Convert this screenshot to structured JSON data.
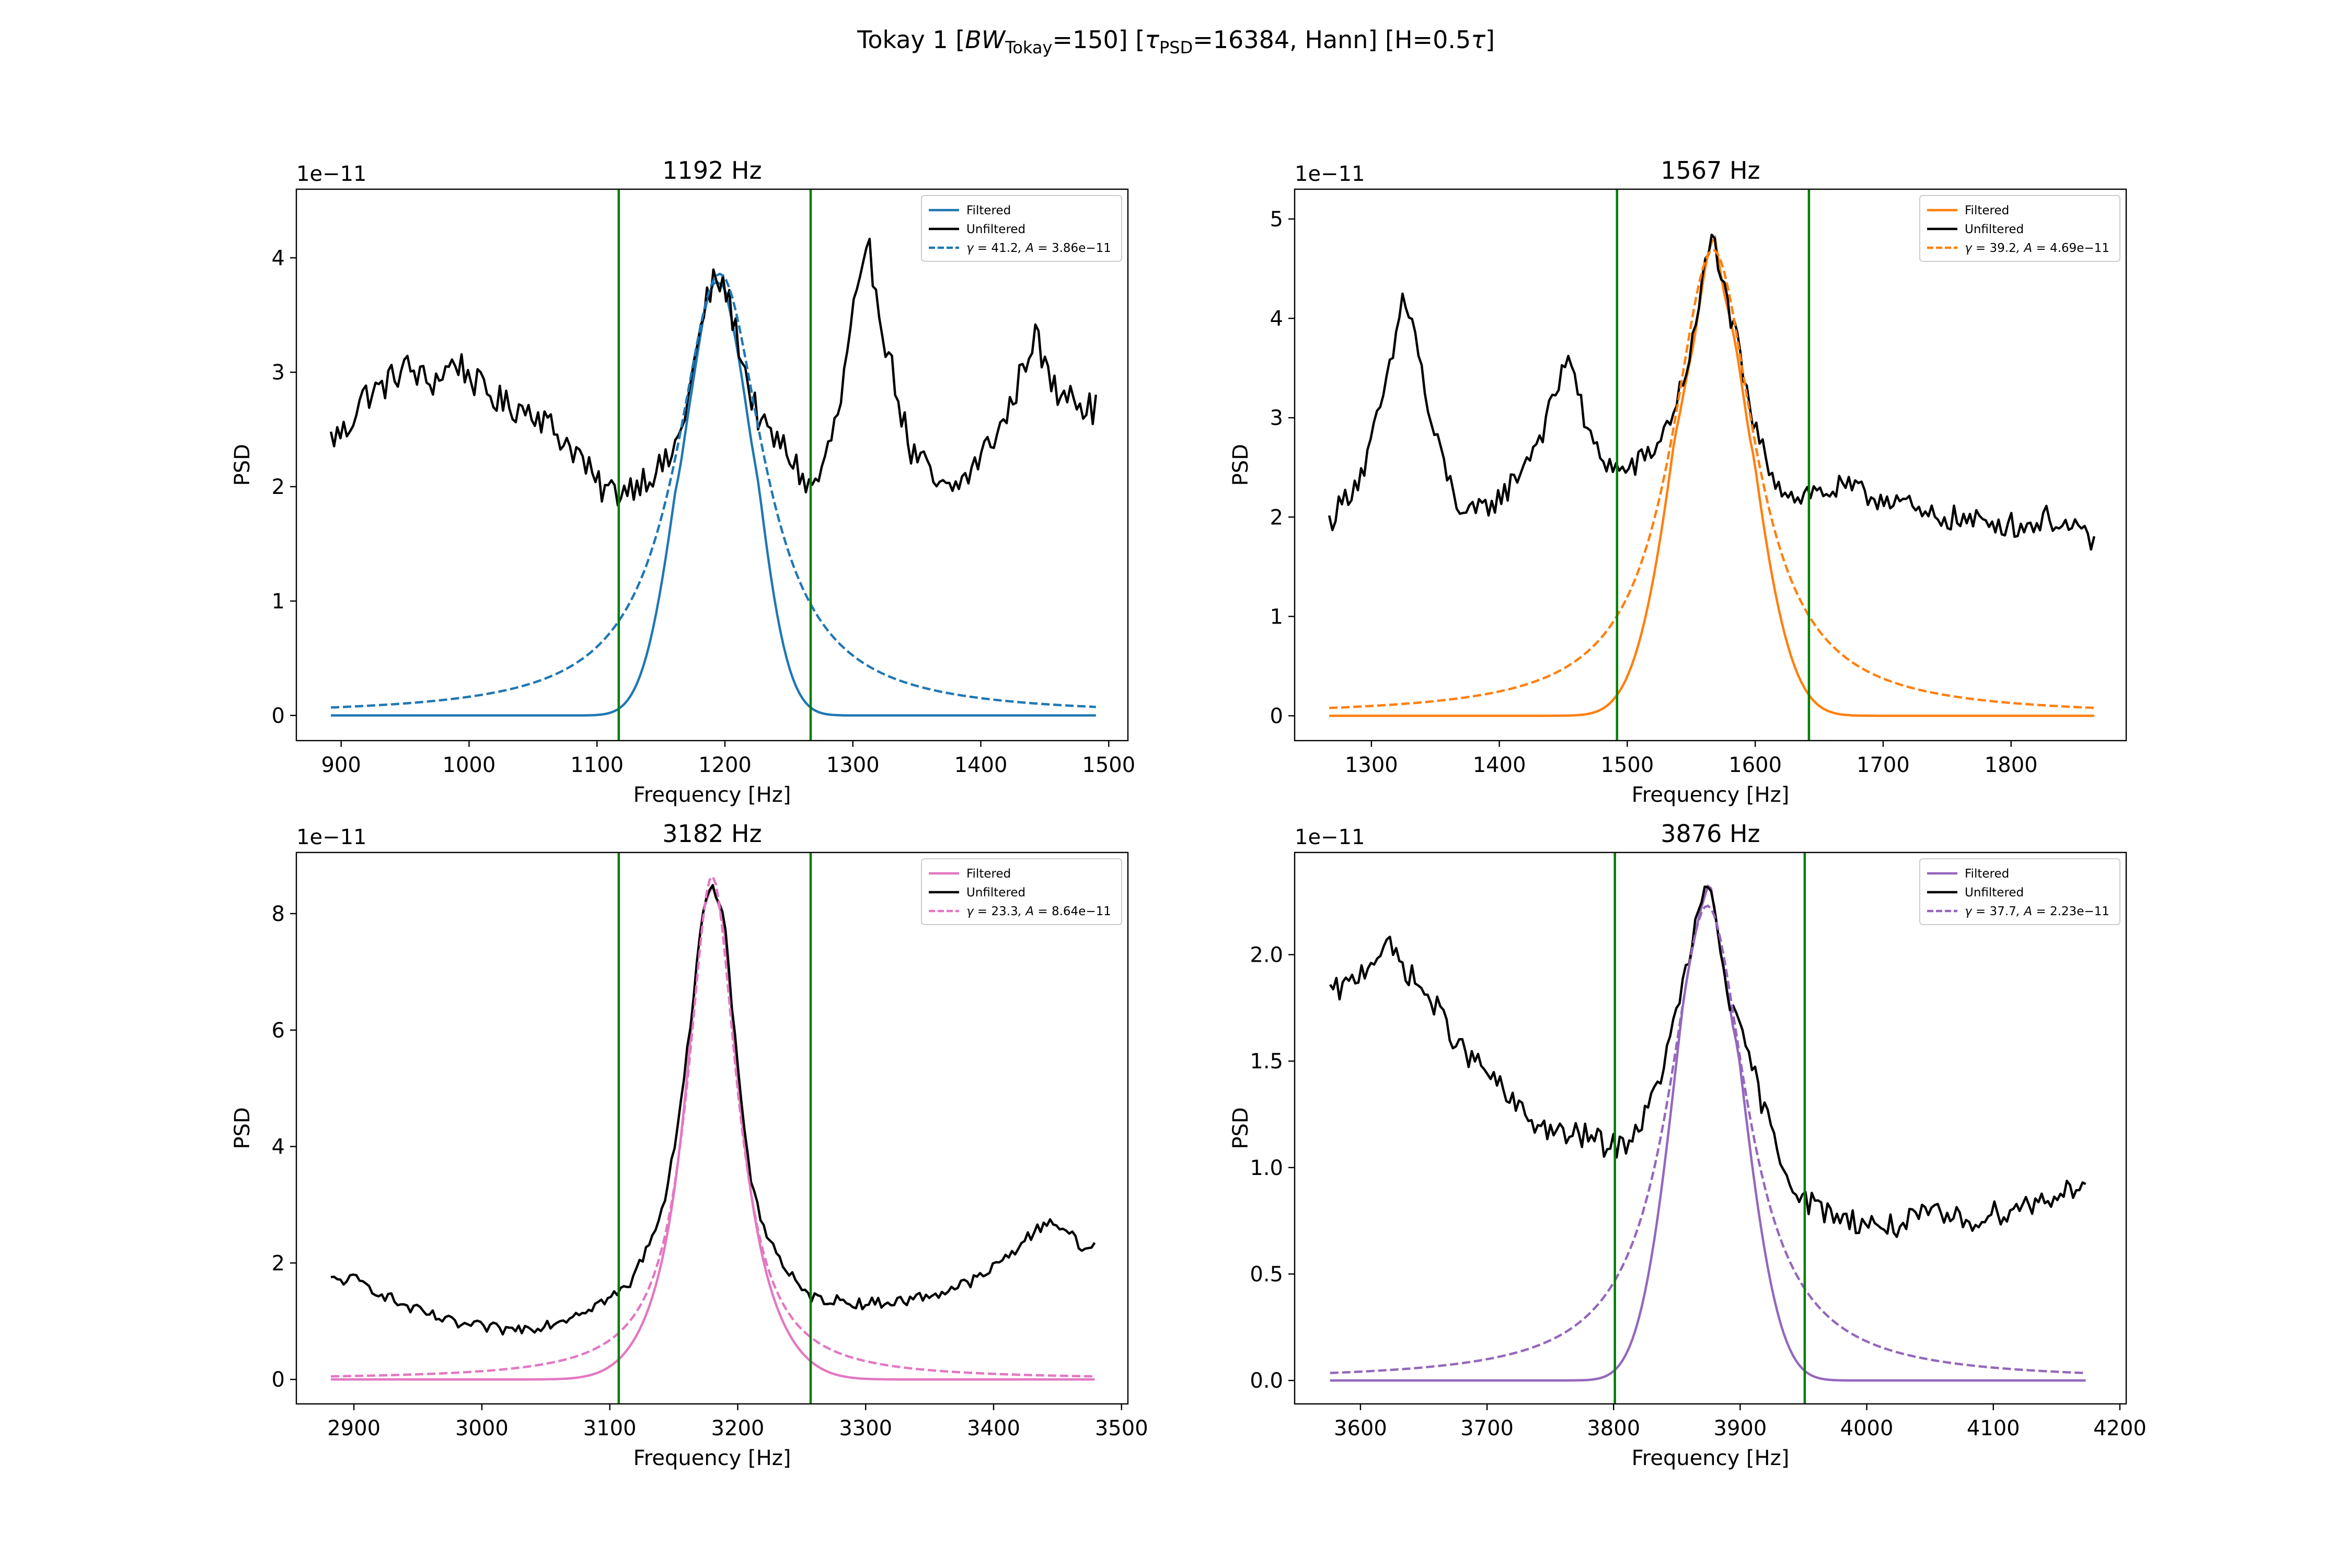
{
  "figure": {
    "suptitle": {
      "prefix": "Tokay 1    [",
      "bw_symbol": "BW",
      "bw_sub": "Tokay",
      "bw_value": "=150]   [",
      "tau_symbol": "τ",
      "tau_sub": "PSD",
      "tau_value": "=16384, Hann]   [H=0.5",
      "tau2_symbol": "τ",
      "suffix": "]"
    }
  },
  "colors": {
    "tab_blue": "#1f77b4",
    "tab_orange": "#ff7f0e",
    "tab_pink": "#e377c2",
    "tab_purple": "#9467bd",
    "unfiltered": "#000000",
    "band_lines": "#008000",
    "legend_border": "#cccccc"
  },
  "chart_data": [
    {
      "type": "line",
      "title": "1192 Hz",
      "xlabel": "Frequency [Hz]",
      "ylabel": "PSD",
      "offset_text": "1e−11",
      "xlim": [
        865,
        1515
      ],
      "ylim": [
        -0.22,
        4.6
      ],
      "xticks": [
        900,
        1000,
        1100,
        1200,
        1300,
        1400,
        1500
      ],
      "yticks": [
        0,
        1,
        2,
        3,
        4
      ],
      "ytick_labels": [
        "0",
        "1",
        "2",
        "3",
        "4"
      ],
      "f0": 1192,
      "vlines": [
        1117,
        1267
      ],
      "x_range": [
        892,
        1490
      ],
      "color": "#1f77b4",
      "fit": {
        "gamma": 41.2,
        "A": 3.86,
        "center": 1196,
        "label_gamma": "41.2",
        "label_A": "3.86e−11"
      },
      "legend": {
        "filtered": "Filtered",
        "unfiltered": "Unfiltered",
        "fit_prefix": "γ = ",
        "fit_mid": ", A = "
      },
      "unfiltered": {
        "anchors": [
          [
            892,
            2.42
          ],
          [
            905,
            2.5
          ],
          [
            915,
            2.78
          ],
          [
            930,
            2.85
          ],
          [
            950,
            3.05
          ],
          [
            970,
            2.9
          ],
          [
            990,
            3.1
          ],
          [
            1010,
            2.85
          ],
          [
            1030,
            2.7
          ],
          [
            1050,
            2.68
          ],
          [
            1070,
            2.45
          ],
          [
            1085,
            2.3
          ],
          [
            1100,
            2.0
          ],
          [
            1115,
            1.95
          ],
          [
            1125,
            2.0
          ],
          [
            1140,
            2.1
          ],
          [
            1155,
            2.2
          ],
          [
            1165,
            2.45
          ],
          [
            1175,
            3.0
          ],
          [
            1185,
            3.6
          ],
          [
            1192,
            3.8
          ],
          [
            1200,
            3.75
          ],
          [
            1210,
            3.3
          ],
          [
            1220,
            2.8
          ],
          [
            1230,
            2.5
          ],
          [
            1245,
            2.35
          ],
          [
            1255,
            2.2
          ],
          [
            1265,
            1.98
          ],
          [
            1275,
            2.1
          ],
          [
            1290,
            2.7
          ],
          [
            1300,
            3.5
          ],
          [
            1313,
            4.05
          ],
          [
            1325,
            3.3
          ],
          [
            1335,
            2.8
          ],
          [
            1345,
            2.3
          ],
          [
            1355,
            2.2
          ],
          [
            1365,
            2.0
          ],
          [
            1375,
            1.95
          ],
          [
            1390,
            2.1
          ],
          [
            1405,
            2.35
          ],
          [
            1420,
            2.6
          ],
          [
            1432,
            3.0
          ],
          [
            1442,
            3.35
          ],
          [
            1450,
            3.05
          ],
          [
            1460,
            2.8
          ],
          [
            1470,
            2.9
          ],
          [
            1480,
            2.7
          ],
          [
            1490,
            2.68
          ]
        ],
        "noise": 0.14
      },
      "filtered_profile": {
        "sigma": 38,
        "edge": 0.6
      }
    },
    {
      "type": "line",
      "title": "1567 Hz",
      "xlabel": "Frequency [Hz]",
      "ylabel": "PSD",
      "offset_text": "1e−11",
      "xlim": [
        1240,
        1890
      ],
      "ylim": [
        -0.25,
        5.3
      ],
      "xticks": [
        1300,
        1400,
        1500,
        1600,
        1700,
        1800
      ],
      "yticks": [
        0,
        1,
        2,
        3,
        4,
        5
      ],
      "ytick_labels": [
        "0",
        "1",
        "2",
        "3",
        "4",
        "5"
      ],
      "f0": 1567,
      "vlines": [
        1492,
        1642
      ],
      "x_range": [
        1267,
        1865
      ],
      "color": "#ff7f0e",
      "fit": {
        "gamma": 39.2,
        "A": 4.69,
        "center": 1567,
        "label_gamma": "39.2",
        "label_A": "4.69e−11"
      },
      "legend": {
        "filtered": "Filtered",
        "unfiltered": "Unfiltered",
        "fit_prefix": "γ = ",
        "fit_mid": ", A = "
      },
      "unfiltered": {
        "anchors": [
          [
            1267,
            1.95
          ],
          [
            1280,
            2.2
          ],
          [
            1295,
            2.5
          ],
          [
            1305,
            3.0
          ],
          [
            1315,
            3.5
          ],
          [
            1325,
            4.25
          ],
          [
            1335,
            3.8
          ],
          [
            1345,
            3.0
          ],
          [
            1355,
            2.6
          ],
          [
            1365,
            2.2
          ],
          [
            1375,
            2.0
          ],
          [
            1390,
            2.1
          ],
          [
            1405,
            2.25
          ],
          [
            1420,
            2.55
          ],
          [
            1435,
            2.9
          ],
          [
            1448,
            3.4
          ],
          [
            1455,
            3.7
          ],
          [
            1462,
            3.2
          ],
          [
            1470,
            2.8
          ],
          [
            1480,
            2.6
          ],
          [
            1495,
            2.45
          ],
          [
            1510,
            2.55
          ],
          [
            1525,
            2.75
          ],
          [
            1540,
            3.2
          ],
          [
            1552,
            3.8
          ],
          [
            1562,
            4.6
          ],
          [
            1568,
            4.85
          ],
          [
            1575,
            4.3
          ],
          [
            1585,
            3.8
          ],
          [
            1595,
            3.1
          ],
          [
            1605,
            2.7
          ],
          [
            1615,
            2.4
          ],
          [
            1630,
            2.2
          ],
          [
            1642,
            2.25
          ],
          [
            1655,
            2.25
          ],
          [
            1670,
            2.3
          ],
          [
            1690,
            2.2
          ],
          [
            1710,
            2.2
          ],
          [
            1730,
            2.0
          ],
          [
            1750,
            2.0
          ],
          [
            1770,
            1.95
          ],
          [
            1790,
            1.95
          ],
          [
            1810,
            1.9
          ],
          [
            1830,
            2.0
          ],
          [
            1850,
            1.85
          ],
          [
            1865,
            1.75
          ]
        ],
        "noise": 0.13
      },
      "filtered_profile": {
        "sigma": 45,
        "edge": 0.55
      }
    },
    {
      "type": "line",
      "title": "3182 Hz",
      "xlabel": "Frequency [Hz]",
      "ylabel": "PSD",
      "offset_text": "1e−11",
      "xlim": [
        2855,
        3505
      ],
      "ylim": [
        -0.42,
        9.05
      ],
      "xticks": [
        2900,
        3000,
        3100,
        3200,
        3300,
        3400,
        3500
      ],
      "yticks": [
        0,
        2,
        4,
        6,
        8
      ],
      "ytick_labels": [
        "0",
        "2",
        "4",
        "6",
        "8"
      ],
      "f0": 3182,
      "vlines": [
        3107,
        3257
      ],
      "x_range": [
        2882,
        3479
      ],
      "color": "#e377c2",
      "fit": {
        "gamma": 23.3,
        "A": 8.64,
        "center": 3180,
        "label_gamma": "23.3",
        "label_A": "8.64e−11"
      },
      "legend": {
        "filtered": "Filtered",
        "unfiltered": "Unfiltered",
        "fit_prefix": "γ = ",
        "fit_mid": ", A = "
      },
      "unfiltered": {
        "anchors": [
          [
            2882,
            1.7
          ],
          [
            2900,
            1.72
          ],
          [
            2920,
            1.5
          ],
          [
            2940,
            1.25
          ],
          [
            2960,
            1.1
          ],
          [
            2980,
            0.95
          ],
          [
            3000,
            0.9
          ],
          [
            3020,
            0.85
          ],
          [
            3040,
            0.9
          ],
          [
            3060,
            1.0
          ],
          [
            3080,
            1.2
          ],
          [
            3100,
            1.4
          ],
          [
            3115,
            1.6
          ],
          [
            3130,
            2.3
          ],
          [
            3145,
            3.2
          ],
          [
            3160,
            5.5
          ],
          [
            3172,
            8.0
          ],
          [
            3180,
            8.5
          ],
          [
            3190,
            7.8
          ],
          [
            3200,
            5.3
          ],
          [
            3210,
            3.5
          ],
          [
            3220,
            2.6
          ],
          [
            3235,
            2.0
          ],
          [
            3250,
            1.5
          ],
          [
            3260,
            1.4
          ],
          [
            3280,
            1.35
          ],
          [
            3300,
            1.3
          ],
          [
            3330,
            1.35
          ],
          [
            3360,
            1.5
          ],
          [
            3390,
            1.75
          ],
          [
            3410,
            2.1
          ],
          [
            3430,
            2.5
          ],
          [
            3445,
            2.75
          ],
          [
            3460,
            2.5
          ],
          [
            3470,
            2.2
          ],
          [
            3479,
            2.35
          ]
        ],
        "noise": 0.1
      },
      "filtered_profile": {
        "sigma": 55,
        "edge": 0.5
      }
    },
    {
      "type": "line",
      "title": "3876 Hz",
      "xlabel": "Frequency [Hz]",
      "ylabel": "PSD",
      "offset_text": "1e−11",
      "xlim": [
        3548,
        4205
      ],
      "ylim": [
        -0.11,
        2.48
      ],
      "xticks": [
        3600,
        3700,
        3800,
        3900,
        4000,
        4100,
        4200
      ],
      "yticks": [
        0,
        0.5,
        1,
        1.5,
        2
      ],
      "ytick_labels": [
        "0.0",
        "0.5",
        "1.0",
        "1.5",
        "2.0"
      ],
      "f0": 3876,
      "vlines": [
        3801,
        3951
      ],
      "x_range": [
        3576,
        4173
      ],
      "color": "#9467bd",
      "fit": {
        "gamma": 37.7,
        "A": 2.23,
        "center": 3874,
        "label_gamma": "37.7",
        "label_A": "2.23e−11"
      },
      "legend": {
        "filtered": "Filtered",
        "unfiltered": "Unfiltered",
        "fit_prefix": "γ = ",
        "fit_mid": ", A = "
      },
      "unfiltered": {
        "anchors": [
          [
            3576,
            1.82
          ],
          [
            3590,
            1.85
          ],
          [
            3605,
            1.95
          ],
          [
            3620,
            2.05
          ],
          [
            3640,
            1.9
          ],
          [
            3660,
            1.75
          ],
          [
            3680,
            1.55
          ],
          [
            3700,
            1.45
          ],
          [
            3720,
            1.3
          ],
          [
            3740,
            1.2
          ],
          [
            3760,
            1.15
          ],
          [
            3780,
            1.15
          ],
          [
            3795,
            1.1
          ],
          [
            3805,
            1.1
          ],
          [
            3815,
            1.15
          ],
          [
            3830,
            1.3
          ],
          [
            3845,
            1.6
          ],
          [
            3858,
            1.95
          ],
          [
            3868,
            2.2
          ],
          [
            3876,
            2.35
          ],
          [
            3885,
            2.0
          ],
          [
            3895,
            1.7
          ],
          [
            3908,
            1.5
          ],
          [
            3920,
            1.25
          ],
          [
            3935,
            1.0
          ],
          [
            3950,
            0.85
          ],
          [
            3965,
            0.8
          ],
          [
            3990,
            0.75
          ],
          [
            4020,
            0.72
          ],
          [
            4050,
            0.78
          ],
          [
            4080,
            0.75
          ],
          [
            4110,
            0.8
          ],
          [
            4140,
            0.85
          ],
          [
            4160,
            0.9
          ],
          [
            4173,
            0.95
          ]
        ],
        "noise": 0.06
      },
      "filtered_profile": {
        "sigma": 40,
        "edge": 0.6
      }
    }
  ]
}
